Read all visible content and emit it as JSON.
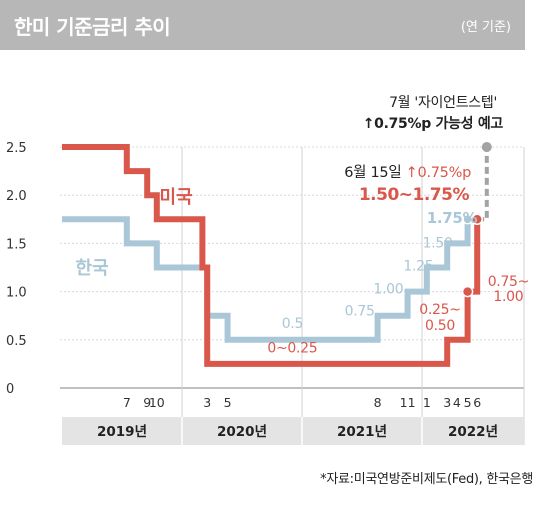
{
  "header": {
    "title": "한미 기준금리 추이",
    "unit": "(연 기준)"
  },
  "chart_data": {
    "type": "line",
    "title": "한미 기준금리 추이",
    "unit": "(연 기준)",
    "ylim": [
      0,
      2.5
    ],
    "y_ticks": [
      "0",
      "0.5",
      "1.0",
      "1.5",
      "2.0",
      "2.5"
    ],
    "month_ticks": [
      {
        "label": "7",
        "x": 2019.54
      },
      {
        "label": "9",
        "x": 2019.71
      },
      {
        "label": "10",
        "x": 2019.79
      },
      {
        "label": "3",
        "x": 2020.21
      },
      {
        "label": "5",
        "x": 2020.38
      },
      {
        "label": "8",
        "x": 2021.63
      },
      {
        "label": "11",
        "x": 2021.88
      },
      {
        "label": "1",
        "x": 2022.04
      },
      {
        "label": "3",
        "x": 2022.21
      },
      {
        "label": "4",
        "x": 2022.29
      },
      {
        "label": "5",
        "x": 2022.38
      },
      {
        "label": "6",
        "x": 2022.46
      }
    ],
    "years": [
      "2019년",
      "2020년",
      "2021년",
      "2022년"
    ],
    "series": [
      {
        "name": "미국",
        "color": "#d9574b",
        "steps": [
          [
            2019.0,
            2.5
          ],
          [
            2019.54,
            2.25
          ],
          [
            2019.71,
            2.0
          ],
          [
            2019.79,
            1.75
          ],
          [
            2020.17,
            1.25
          ],
          [
            2020.21,
            0.25
          ],
          [
            2022.21,
            0.5
          ],
          [
            2022.38,
            1.0
          ],
          [
            2022.46,
            1.75
          ]
        ],
        "end": 2022.46
      },
      {
        "name": "한국",
        "color": "#a9c7d6",
        "steps": [
          [
            2019.0,
            1.75
          ],
          [
            2019.54,
            1.5
          ],
          [
            2019.79,
            1.25
          ],
          [
            2020.21,
            0.75
          ],
          [
            2020.38,
            0.5
          ],
          [
            2021.63,
            0.75
          ],
          [
            2021.88,
            1.0
          ],
          [
            2022.04,
            1.25
          ],
          [
            2022.21,
            1.5
          ],
          [
            2022.38,
            1.75
          ]
        ],
        "end": 2022.46
      }
    ],
    "forecast": {
      "x": 2022.54,
      "from": 1.75,
      "to": 2.5,
      "color": "#a3a3a3"
    },
    "annotations": [
      {
        "text": "0.5",
        "x": 2020.92,
        "y": 0.62,
        "color": "#a9c7d6"
      },
      {
        "text": "0~0.25",
        "x": 2020.92,
        "y": 0.37,
        "color": "#d9574b"
      },
      {
        "text": "0.75",
        "x": 2021.48,
        "y": 0.75,
        "color": "#a9c7d6"
      },
      {
        "text": "1.00",
        "x": 2021.72,
        "y": 0.98,
        "color": "#a9c7d6"
      },
      {
        "text": "1.25",
        "x": 2021.97,
        "y": 1.22,
        "color": "#a9c7d6"
      },
      {
        "text": "1.50",
        "x": 2022.13,
        "y": 1.46,
        "color": "#a9c7d6"
      },
      {
        "text": "1.75%",
        "x": 2022.25,
        "y": 1.71,
        "color": "#a9c7d6"
      },
      {
        "text": "0.25~",
        "x": 2022.15,
        "y": 0.77,
        "color": "#d9574b"
      },
      {
        "text": "0.50",
        "x": 2022.15,
        "y": 0.6,
        "color": "#d9574b"
      },
      {
        "text": "0.75~",
        "x": 2022.72,
        "y": 1.06,
        "color": "#d9574b"
      },
      {
        "text": "1.00",
        "x": 2022.72,
        "y": 0.9,
        "color": "#d9574b"
      }
    ],
    "series_labels": [
      {
        "text": "미국",
        "x": 2019.95,
        "y": 1.92,
        "color": "#d9574b"
      },
      {
        "text": "한국",
        "x": 2019.25,
        "y": 1.18,
        "color": "#a9c7d6"
      }
    ],
    "callout": {
      "date": "6월 15일",
      "change": "↑0.75%p",
      "range": "1.50~1.75%",
      "note_line1": "7월 '자이언트스텝'",
      "note_line2": "↑0.75%p 가능성 예고"
    }
  },
  "source": "*자료:미국연방준비제도(Fed), 한국은행"
}
